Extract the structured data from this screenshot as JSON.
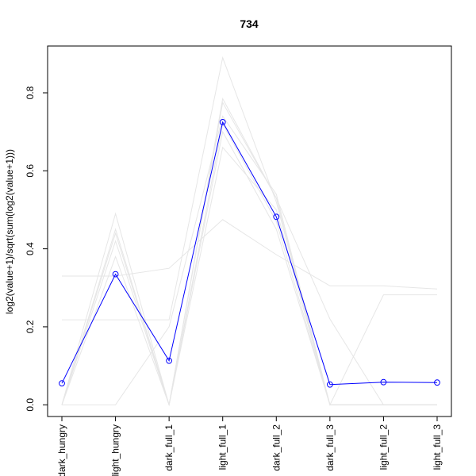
{
  "chart_data": {
    "type": "line",
    "title": "734",
    "xlabel": "",
    "ylabel": "log2(value+1)/sqrt(sum(log2(value+1)))",
    "categories": [
      "dark_hungry",
      "light_hungry",
      "dark_full_1",
      "light_full_1",
      "dark_full_2",
      "dark_full_3",
      "light_full_2",
      "light_full_3"
    ],
    "ylim": [
      -0.03,
      0.92
    ],
    "yticks": [
      0.0,
      0.2,
      0.4,
      0.6,
      0.8
    ],
    "ytick_labels": [
      "0.0",
      "0.2",
      "0.4",
      "0.6",
      "0.8"
    ],
    "grid": false,
    "highlight_color": "#0000ff",
    "background_color": "#e6e6e6",
    "series": [
      {
        "highlight": true,
        "values": [
          0.055,
          0.335,
          0.113,
          0.725,
          0.482,
          0.052,
          0.058,
          0.057
        ]
      },
      {
        "values": [
          0.33,
          0.33,
          0.35,
          0.475,
          0.385,
          0.305,
          0.305,
          0.297
        ]
      },
      {
        "values": [
          0.218,
          0.218,
          0.218,
          0.89,
          0.52,
          0.0,
          0.282,
          0.282
        ]
      },
      {
        "values": [
          0.0,
          0.49,
          0.0,
          0.785,
          0.53,
          0.22,
          0.0,
          0.0
        ]
      },
      {
        "values": [
          0.0,
          0.45,
          0.0,
          0.775,
          0.53,
          0.0,
          0.0,
          0.0
        ]
      },
      {
        "values": [
          0.0,
          0.38,
          0.0,
          0.66,
          0.5,
          0.0,
          0.0,
          0.0
        ]
      },
      {
        "values": [
          0.0,
          0.0,
          0.2,
          0.74,
          0.54,
          0.0,
          0.0,
          0.0
        ]
      },
      {
        "values": [
          0.0,
          0.44,
          0.0,
          0.72,
          0.47,
          0.0,
          0.0,
          0.0
        ]
      },
      {
        "values": [
          0.0,
          0.42,
          0.0,
          0.7,
          0.45,
          0.0,
          0.0,
          0.0
        ]
      }
    ]
  }
}
